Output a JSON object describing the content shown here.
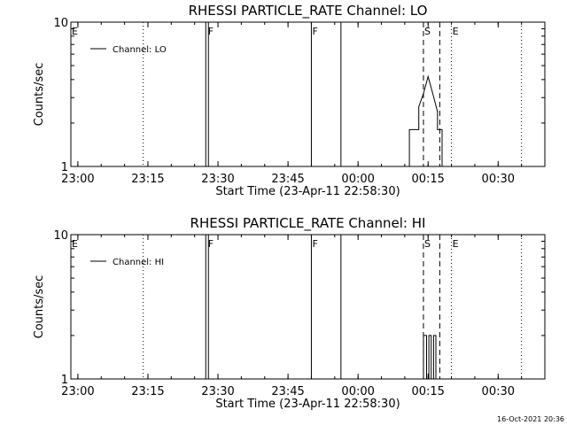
{
  "footer": {
    "timestamp": "16-Oct-2021 20:36"
  },
  "chart_data": [
    {
      "type": "line",
      "title": "RHESSI PARTICLE_RATE Channel: LO",
      "xlabel": "Start Time (23-Apr-11 22:58:30)",
      "ylabel": "Counts/sec",
      "yscale": "log",
      "ylim": [
        1,
        10
      ],
      "xlim": [
        "22:58:30",
        "00:40:00"
      ],
      "x_ticks": [
        "23:00",
        "23:15",
        "23:30",
        "23:45",
        "00:00",
        "00:15",
        "00:30"
      ],
      "y_ticks": [
        "1",
        "10"
      ],
      "legend": {
        "entries": [
          "Channel: LO"
        ],
        "position": "top-left"
      },
      "series": [
        {
          "name": "Channel: LO",
          "points": [
            [
              "00:11:00",
              1
            ],
            [
              "00:11:00",
              1.8
            ],
            [
              "00:13:00",
              1.8
            ],
            [
              "00:13:00",
              2.6
            ],
            [
              "00:14:00",
              3.2
            ],
            [
              "00:15:00",
              4.2
            ],
            [
              "00:16:00",
              3.2
            ],
            [
              "00:17:00",
              2.4
            ],
            [
              "00:17:00",
              1.8
            ],
            [
              "00:18:00",
              1.8
            ],
            [
              "00:18:00",
              1
            ]
          ]
        }
      ],
      "flag_lines": [
        {
          "time": "22:58:30",
          "label": "E",
          "style": "solid"
        },
        {
          "time": "23:14:00",
          "label": "",
          "style": "dotted"
        },
        {
          "time": "23:27:40",
          "label": "F",
          "style": "double"
        },
        {
          "time": "23:50:00",
          "label": "F",
          "style": "solid"
        },
        {
          "time": "23:56:20",
          "label": "",
          "style": "solid"
        },
        {
          "time": "00:14:00",
          "label": "S",
          "style": "dashed"
        },
        {
          "time": "00:17:30",
          "label": "",
          "style": "dashed"
        },
        {
          "time": "00:20:00",
          "label": "E",
          "style": "dotted"
        },
        {
          "time": "00:35:00",
          "label": "",
          "style": "dotted"
        }
      ]
    },
    {
      "type": "line",
      "title": "RHESSI PARTICLE_RATE Channel: HI",
      "xlabel": "Start Time (23-Apr-11 22:58:30)",
      "ylabel": "Counts/sec",
      "yscale": "log",
      "ylim": [
        1,
        10
      ],
      "xlim": [
        "22:58:30",
        "00:40:00"
      ],
      "x_ticks": [
        "23:00",
        "23:15",
        "23:30",
        "23:45",
        "00:00",
        "00:15",
        "00:30"
      ],
      "y_ticks": [
        "1",
        "10"
      ],
      "legend": {
        "entries": [
          "Channel: HI"
        ],
        "position": "top-left"
      },
      "series": [
        {
          "name": "Channel: HI",
          "points": [
            [
              "00:14:00",
              1
            ],
            [
              "00:14:00",
              2
            ],
            [
              "00:14:40",
              2
            ],
            [
              "00:14:40",
              1
            ],
            [
              "00:15:10",
              1
            ],
            [
              "00:15:10",
              2
            ],
            [
              "00:15:40",
              2
            ],
            [
              "00:15:40",
              1
            ],
            [
              "00:16:10",
              1
            ],
            [
              "00:16:10",
              2
            ],
            [
              "00:16:40",
              2
            ],
            [
              "00:16:40",
              1
            ]
          ]
        }
      ],
      "flag_lines": [
        {
          "time": "22:58:30",
          "label": "E",
          "style": "solid"
        },
        {
          "time": "23:14:00",
          "label": "",
          "style": "dotted"
        },
        {
          "time": "23:27:40",
          "label": "F",
          "style": "double"
        },
        {
          "time": "23:50:00",
          "label": "F",
          "style": "solid"
        },
        {
          "time": "23:56:20",
          "label": "",
          "style": "solid"
        },
        {
          "time": "00:14:00",
          "label": "S",
          "style": "dashed"
        },
        {
          "time": "00:17:30",
          "label": "",
          "style": "dashed"
        },
        {
          "time": "00:20:00",
          "label": "E",
          "style": "dotted"
        },
        {
          "time": "00:35:00",
          "label": "",
          "style": "dotted"
        }
      ]
    }
  ]
}
